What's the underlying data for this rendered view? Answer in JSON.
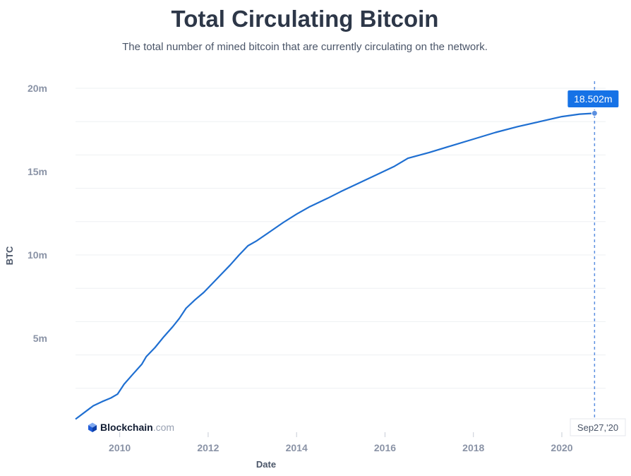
{
  "chart_data": {
    "type": "line",
    "title": "Total Circulating Bitcoin",
    "subtitle": "The total number of mined bitcoin that are currently circulating on the network.",
    "xlabel": "Date",
    "ylabel": "BTC",
    "xlim": [
      2009.0,
      2020.83
    ],
    "ylim": [
      0,
      20000000
    ],
    "x_ticks": [
      2010,
      2012,
      2014,
      2016,
      2018,
      2020
    ],
    "y_ticks": [
      {
        "value": 5000000,
        "label": "5m"
      },
      {
        "value": 10000000,
        "label": "10m"
      },
      {
        "value": 15000000,
        "label": "15m"
      },
      {
        "value": 20000000,
        "label": "20m"
      }
    ],
    "grid": true,
    "series": [
      {
        "name": "Total Circulating Bitcoin",
        "color": "#1f6fd1",
        "x": [
          2009.0,
          2009.4,
          2009.6,
          2009.8,
          2009.95,
          2010.1,
          2010.3,
          2010.5,
          2010.6,
          2010.8,
          2011.0,
          2011.2,
          2011.35,
          2011.5,
          2011.7,
          2011.9,
          2012.1,
          2012.3,
          2012.5,
          2012.7,
          2012.9,
          2013.1,
          2013.4,
          2013.7,
          2014.0,
          2014.3,
          2014.7,
          2015.0,
          2015.4,
          2015.8,
          2016.2,
          2016.52,
          2017.0,
          2017.5,
          2018.0,
          2018.5,
          2019.0,
          2019.5,
          2020.0,
          2020.4,
          2020.74
        ],
        "values": [
          150000,
          950000,
          1200000,
          1420000,
          1650000,
          2250000,
          2850000,
          3450000,
          3900000,
          4450000,
          5100000,
          5700000,
          6200000,
          6800000,
          7300000,
          7750000,
          8300000,
          8850000,
          9400000,
          10000000,
          10550000,
          10850000,
          11400000,
          11950000,
          12450000,
          12900000,
          13400000,
          13800000,
          14300000,
          14800000,
          15300000,
          15800000,
          16150000,
          16550000,
          16950000,
          17350000,
          17700000,
          18000000,
          18300000,
          18450000,
          18502000
        ]
      }
    ],
    "annotations": {
      "latest_value_label": "18.502m",
      "latest_date_label": "Sep27,'20"
    }
  },
  "watermark": {
    "brand_main": "Blockchain",
    "brand_suffix": ".com"
  }
}
